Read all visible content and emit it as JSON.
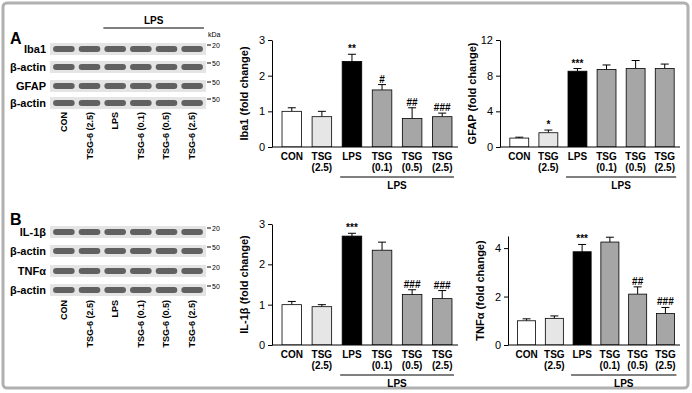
{
  "panels": [
    "A",
    "B"
  ],
  "blots": [
    {
      "rows": [
        {
          "label": "Iba1",
          "marker": 20
        },
        {
          "label": "β-actin",
          "marker": 50
        },
        {
          "label": "GFAP",
          "marker": 50
        },
        {
          "label": "β-actin",
          "marker": 50
        }
      ],
      "unit": "kDa",
      "lanes": [
        "CON",
        "TSG-6 (2.5)",
        "LPS",
        "TSG-6 (0.1)",
        "TSG-6 (0.5)",
        "TSG-6 (2.5)"
      ],
      "lane_group": {
        "label": "LPS",
        "members": [
          false,
          false,
          true,
          true,
          true,
          true
        ]
      }
    },
    {
      "rows": [
        {
          "label": "IL-1β",
          "marker": 20
        },
        {
          "label": "β-actin",
          "marker": 50
        },
        {
          "label": "TNFα",
          "marker": 20
        },
        {
          "label": "β-actin",
          "marker": 50
        }
      ],
      "lanes": [
        "CON",
        "TSG-6 (2.5)",
        "LPS",
        "TSG-6 (0.1)",
        "TSG-6 (0.5)",
        "TSG-6 (2.5)"
      ]
    }
  ],
  "chart_data": [
    {
      "type": "bar",
      "ylabel": "Iba1 (fold change)",
      "categories": [
        "CON",
        "TSG (2.5)",
        "LPS",
        "TSG (0.1)",
        "TSG (0.5)",
        "TSG (2.5)"
      ],
      "values": [
        1.0,
        0.85,
        2.4,
        1.6,
        0.8,
        0.85
      ],
      "errors": [
        0.1,
        0.15,
        0.2,
        0.15,
        0.3,
        0.1
      ],
      "significance": [
        null,
        null,
        "**",
        "#",
        "##",
        "###"
      ],
      "category_groups": [
        {
          "label": "LPS",
          "members": [
            false,
            false,
            true,
            true,
            true,
            true
          ]
        }
      ],
      "colors": [
        "#ffffff",
        "#e6e6e6",
        "#000000",
        "#a6a6a6",
        "#a6a6a6",
        "#a6a6a6"
      ],
      "ylim": [
        0,
        3
      ],
      "yticks": [
        0,
        1,
        2,
        3
      ]
    },
    {
      "type": "bar",
      "ylabel": "GFAP (fold change)",
      "categories": [
        "CON",
        "TSG (2.5)",
        "LPS",
        "TSG (0.1)",
        "TSG (0.5)",
        "TSG (2.5)"
      ],
      "values": [
        1.0,
        1.6,
        8.5,
        8.7,
        8.8,
        8.8
      ],
      "errors": [
        0.1,
        0.3,
        0.3,
        0.5,
        0.9,
        0.5
      ],
      "significance": [
        null,
        "*",
        "***",
        null,
        null,
        null
      ],
      "category_groups": [
        {
          "label": "LPS",
          "members": [
            false,
            false,
            true,
            true,
            true,
            true
          ]
        }
      ],
      "colors": [
        "#ffffff",
        "#e6e6e6",
        "#000000",
        "#a6a6a6",
        "#a6a6a6",
        "#a6a6a6"
      ],
      "ylim": [
        0,
        12
      ],
      "yticks": [
        0,
        4,
        8,
        12
      ]
    },
    {
      "type": "bar",
      "ylabel": "IL-1β (fold change)",
      "categories": [
        "CON",
        "TSG (2.5)",
        "LPS",
        "TSG (0.1)",
        "TSG (0.5)",
        "TSG (2.5)"
      ],
      "values": [
        1.0,
        0.95,
        2.7,
        2.35,
        1.25,
        1.15
      ],
      "errors": [
        0.08,
        0.05,
        0.07,
        0.2,
        0.12,
        0.2
      ],
      "significance": [
        null,
        null,
        "***",
        null,
        "###",
        "###"
      ],
      "category_groups": [
        {
          "label": "LPS",
          "members": [
            false,
            false,
            true,
            true,
            true,
            true
          ]
        }
      ],
      "colors": [
        "#ffffff",
        "#e6e6e6",
        "#000000",
        "#a6a6a6",
        "#a6a6a6",
        "#a6a6a6"
      ],
      "ylim": [
        0,
        3
      ],
      "yticks": [
        0,
        1,
        2,
        3
      ]
    },
    {
      "type": "bar",
      "ylabel": "TNFα (fold change)",
      "categories": [
        "CON",
        "TSG (2.5)",
        "LPS",
        "TSG (0.1)",
        "TSG (0.5)",
        "TSG (2.5)"
      ],
      "values": [
        1.0,
        1.1,
        3.85,
        4.25,
        2.1,
        1.3
      ],
      "errors": [
        0.08,
        0.1,
        0.3,
        0.2,
        0.3,
        0.25
      ],
      "significance": [
        null,
        null,
        "***",
        null,
        "##",
        "###"
      ],
      "category_groups": [
        {
          "label": "LPS",
          "members": [
            false,
            false,
            true,
            true,
            true,
            true
          ]
        }
      ],
      "colors": [
        "#ffffff",
        "#e6e6e6",
        "#000000",
        "#a6a6a6",
        "#a6a6a6",
        "#a6a6a6"
      ],
      "ylim": [
        0,
        4.5
      ],
      "yticks": [
        0,
        2,
        4
      ]
    }
  ]
}
